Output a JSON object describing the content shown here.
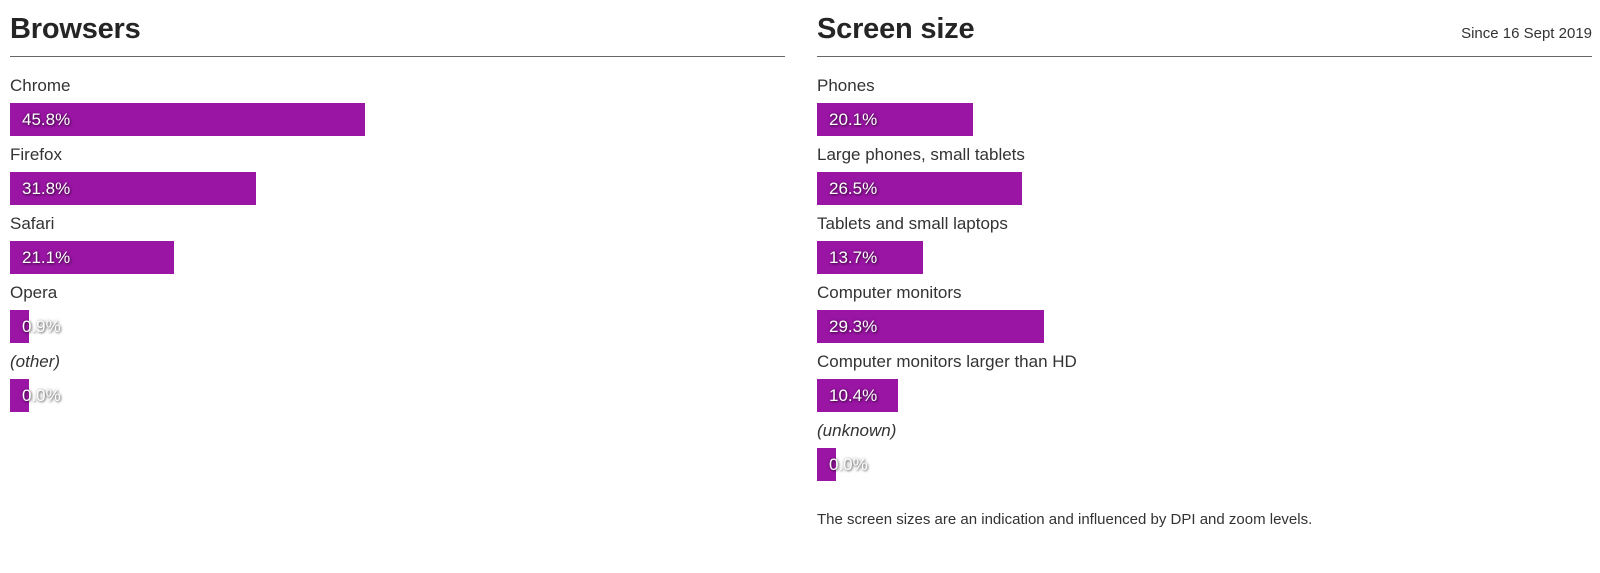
{
  "chart_data": [
    {
      "type": "bar",
      "orientation": "horizontal",
      "title": "Browsers",
      "since": "",
      "categories": [
        "Chrome",
        "Firefox",
        "Safari",
        "Opera",
        "(other)"
      ],
      "values": [
        45.8,
        31.8,
        21.1,
        0.9,
        0.0
      ],
      "value_labels": [
        "45.8%",
        "31.8%",
        "21.1%",
        "0.9%",
        "0.0%"
      ],
      "xlim": [
        0,
        100
      ],
      "grid": false,
      "legend": "none",
      "bar_color": "#9a15a4",
      "note": ""
    },
    {
      "type": "bar",
      "orientation": "horizontal",
      "title": "Screen size",
      "since": "Since 16 Sept 2019",
      "categories": [
        "Phones",
        "Large phones, small tablets",
        "Tablets and small laptops",
        "Computer monitors",
        "Computer monitors larger than HD",
        "(unknown)"
      ],
      "values": [
        20.1,
        26.5,
        13.7,
        29.3,
        10.4,
        0.0
      ],
      "value_labels": [
        "20.1%",
        "26.5%",
        "13.7%",
        "29.3%",
        "10.4%",
        "0.0%"
      ],
      "xlim": [
        0,
        100
      ],
      "grid": false,
      "legend": "none",
      "bar_color": "#9a15a4",
      "note": "The screen sizes are an indication and influenced by DPI and zoom levels."
    }
  ],
  "colors": {
    "bar": "#9a15a4",
    "bar_value_text": "#ffffff",
    "heading": "#252525",
    "text": "#333333",
    "rule": "#666666",
    "background": "#ffffff"
  }
}
